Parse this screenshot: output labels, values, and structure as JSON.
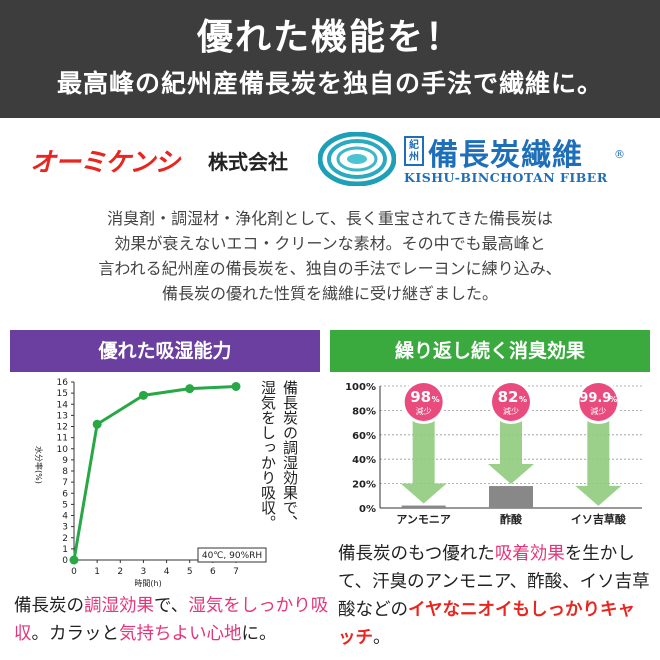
{
  "banner": {
    "title": "優れた機能を！",
    "subtitle": "最高峰の紀州産備長炭を独自の手法で繊維に。"
  },
  "brand": {
    "company_name": "オーミケンシ",
    "company_suffix": "株式会社",
    "logo_tag_line1": "紀",
    "logo_tag_line2": "州",
    "logo_title": "備長炭繊維",
    "logo_registered": "®",
    "logo_english": "KISHU-BINCHOTAN FIBER"
  },
  "intro": {
    "lines": [
      "消臭剤・調湿材・浄化剤として、長く重宝されてきた備長炭は",
      "効果が衰えないエコ・クリーンな素材。その中でも最高峰と",
      "言われる紀州産の備長炭を、独自の手法でレーヨンに練り込み、",
      "備長炭の優れた性質を繊維に受け継ぎました。"
    ]
  },
  "left_panel": {
    "heading": "優れた吸湿能力",
    "note_col1": "湿気をしっかり吸収。",
    "note_col2": "備長炭の調湿効果で、",
    "caption": {
      "p1": "備長炭の",
      "p2": "調湿効果",
      "p3": "で、",
      "p4": "湿気をしっかり吸収",
      "p5": "。カラッと",
      "p6": "気持ちよい心地",
      "p7": "に。"
    }
  },
  "right_panel": {
    "heading": "繰り返し続く消臭効果",
    "caption": {
      "p1": "備長炭のもつ優れた",
      "p2": "吸着効果",
      "p3": "を生かして、汗臭のアンモニア、酢酸、イソ吉草酸などの",
      "p4": "イヤなニオイもしっかりキャッチ",
      "p5": "。"
    }
  },
  "colors": {
    "banner_bg": "#3d3d3d",
    "purple": "#6b3fa0",
    "green": "#3aaa3f",
    "pink": "#e5347a",
    "red": "#e8261f",
    "logo_blue": "#1e6fb8"
  },
  "chart_data": [
    {
      "type": "line",
      "x": [
        0,
        1,
        3,
        5,
        7
      ],
      "y": [
        0,
        12.2,
        14.8,
        15.4,
        15.6
      ],
      "xlabel": "時間(h)",
      "ylabel": "水分率(%)",
      "x_ticks": [
        0,
        1,
        2,
        3,
        4,
        5,
        6,
        7
      ],
      "y_ticks": [
        0,
        1,
        2,
        3,
        4,
        5,
        6,
        7,
        8,
        9,
        10,
        11,
        12,
        13,
        14,
        15,
        16
      ],
      "xlim": [
        0,
        7
      ],
      "ylim": [
        0,
        16
      ],
      "annotation": "40℃, 90%RH",
      "line_color": "#27a844"
    },
    {
      "type": "bar",
      "categories": [
        "アンモニア",
        "酢酸",
        "イソ吉草酸"
      ],
      "values": [
        98,
        82,
        99.9
      ],
      "labels": [
        {
          "main": "98",
          "unit": "%",
          "sub": "減少"
        },
        {
          "main": "82",
          "unit": "%",
          "sub": "減少"
        },
        {
          "main": "99.9",
          "unit": "%",
          "sub": "減少"
        }
      ],
      "y_ticks": [
        "0%",
        "20%",
        "40%",
        "60%",
        "80%",
        "100%"
      ],
      "ylim": [
        0,
        100
      ],
      "bar_color": "#a8d59a",
      "arrow_color": "#8fcb7c"
    }
  ]
}
